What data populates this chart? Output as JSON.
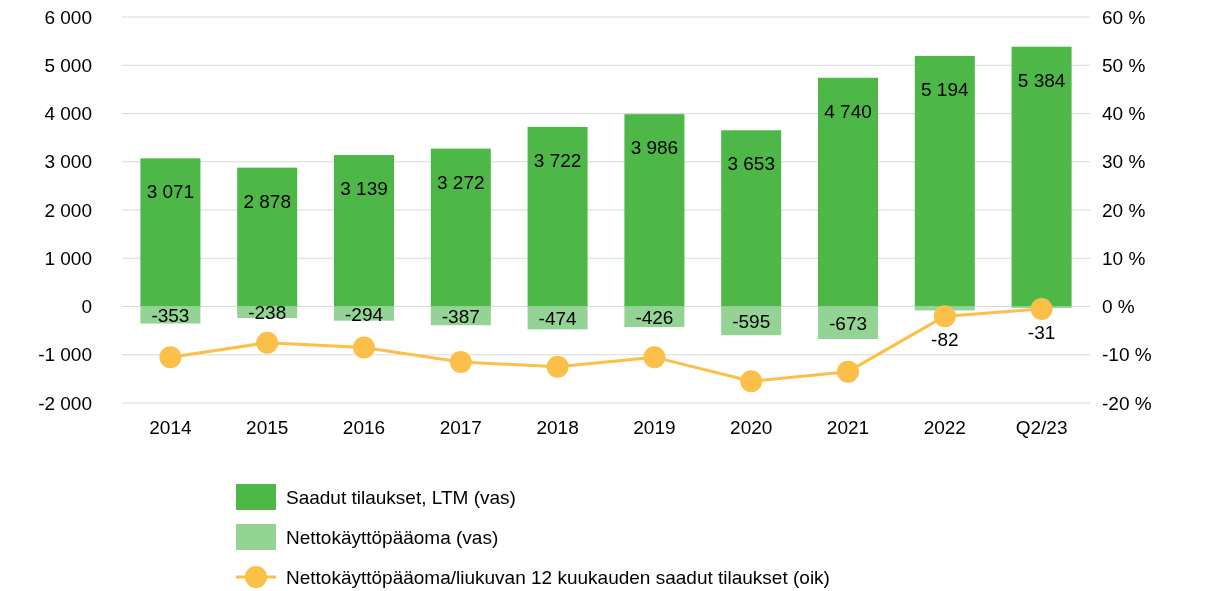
{
  "chart_data": {
    "type": "bar",
    "stacked": true,
    "legend": "bottom",
    "grid": "y",
    "categories": [
      "2014",
      "2015",
      "2016",
      "2017",
      "2018",
      "2019",
      "2020",
      "2021",
      "2022",
      "Q2/23"
    ],
    "series": [
      {
        "name": "Saadut tilaukset, LTM (vas)",
        "color": "#4db848",
        "values": [
          3071,
          2878,
          3139,
          3272,
          3722,
          3986,
          3653,
          4740,
          5194,
          5384
        ],
        "value_labels": [
          "3 071",
          "2 878",
          "3 139",
          "3 272",
          "3 722",
          "3 986",
          "3 653",
          "4 740",
          "5 194",
          "5 384"
        ]
      },
      {
        "name": "Nettokäyttöpääoma (vas)",
        "color": "#93d394",
        "values": [
          -353,
          -238,
          -294,
          -387,
          -474,
          -426,
          -595,
          -673,
          -82,
          -31
        ],
        "value_labels": [
          "-353",
          "-238",
          "-294",
          "-387",
          "-474",
          "-426",
          "-595",
          "-673",
          "-82",
          "-31"
        ]
      },
      {
        "name": "Nettokäyttöpääoma/liukuvan 12 kuukauden saadut tilaukset (oik)",
        "type": "line",
        "axis": "y2",
        "marker": "circle",
        "color": "#fbbf4a",
        "values": [
          -10.5,
          -7.5,
          -8.5,
          -11.5,
          -12.5,
          -10.5,
          -15.5,
          -13.5,
          -2,
          -0.5
        ]
      }
    ],
    "ylim": [
      -2000,
      6000
    ],
    "yticks": [
      {
        "value": -2000,
        "label": "-2 000"
      },
      {
        "value": -1000,
        "label": "-1 000"
      },
      0,
      {
        "value": 1000,
        "label": "1 000"
      },
      {
        "value": 2000,
        "label": "2 000"
      },
      {
        "value": 3000,
        "label": "3 000"
      },
      {
        "value": 4000,
        "label": "4 000"
      },
      {
        "value": 5000,
        "label": "5 000"
      },
      {
        "value": 6000,
        "label": "6 000"
      }
    ],
    "y2lim": [
      -20,
      60
    ],
    "y2ticks": [
      {
        "value": -20,
        "label": "-20 %"
      },
      {
        "value": -10,
        "label": "-10 %"
      },
      {
        "value": 0,
        "label": "0 %"
      },
      {
        "value": 10,
        "label": "10 %"
      },
      {
        "value": 20,
        "label": "20 %"
      },
      {
        "value": 30,
        "label": "30 %"
      },
      {
        "value": 40,
        "label": "40 %"
      },
      {
        "value": 50,
        "label": "50 %"
      },
      {
        "value": 60,
        "label": "60 %"
      }
    ]
  }
}
